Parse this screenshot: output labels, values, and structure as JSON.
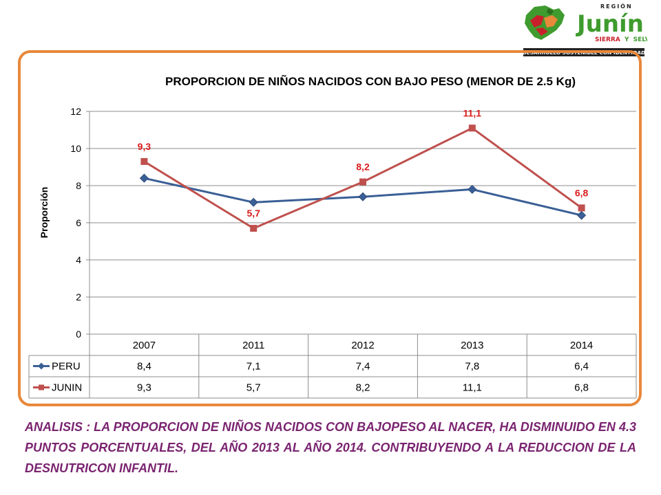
{
  "logo": {
    "region_label": "REGIÓN",
    "name": "Junín",
    "sierra": "SIERRA",
    "y": "Y",
    "selva": "SELVA",
    "tagline": "DESARROLLO SOSTENIBLE CON IDENTIDAD",
    "colors": {
      "green": "#3f9b2e",
      "red": "#c8202a",
      "orange": "#e8883a",
      "dark": "#222222"
    }
  },
  "chart_data": {
    "type": "line",
    "title": "PROPORCION DE NIÑOS NACIDOS CON BAJO PESO (MENOR DE 2.5 Kg)",
    "xlabel": "",
    "ylabel": "Proporción",
    "categories": [
      "2007",
      "2011",
      "2012",
      "2013",
      "2014"
    ],
    "ylim": [
      0,
      12
    ],
    "yticks": [
      "0",
      "2",
      "4",
      "6",
      "8",
      "10",
      "12"
    ],
    "grid": true,
    "legend": "data-table",
    "series": [
      {
        "name": "PERU",
        "values": [
          8.4,
          7.1,
          7.4,
          7.8,
          6.4
        ],
        "labels": [
          "8,4",
          "7,1",
          "7,4",
          "7,8",
          "6,4"
        ],
        "color": "#3a5f96",
        "marker": "diamond",
        "show_point_labels": false
      },
      {
        "name": "JUNIN",
        "values": [
          9.3,
          5.7,
          8.2,
          11.1,
          6.8
        ],
        "labels": [
          "9,3",
          "5,7",
          "8,2",
          "11,1",
          "6,8"
        ],
        "color": "#bf504d",
        "marker": "square",
        "show_point_labels": true,
        "label_color": "#d81b1b"
      }
    ]
  },
  "analysis_text": "ANALISIS : LA PROPORCION DE NIÑOS NACIDOS CON BAJOPESO AL NACER, HA DISMINUIDO EN 4.3 PUNTOS PORCENTUALES, DEL AÑO 2013 AL AÑO 2014. CONTRIBUYENDO A LA REDUCCION DE LA DESNUTRICON INFANTIL."
}
